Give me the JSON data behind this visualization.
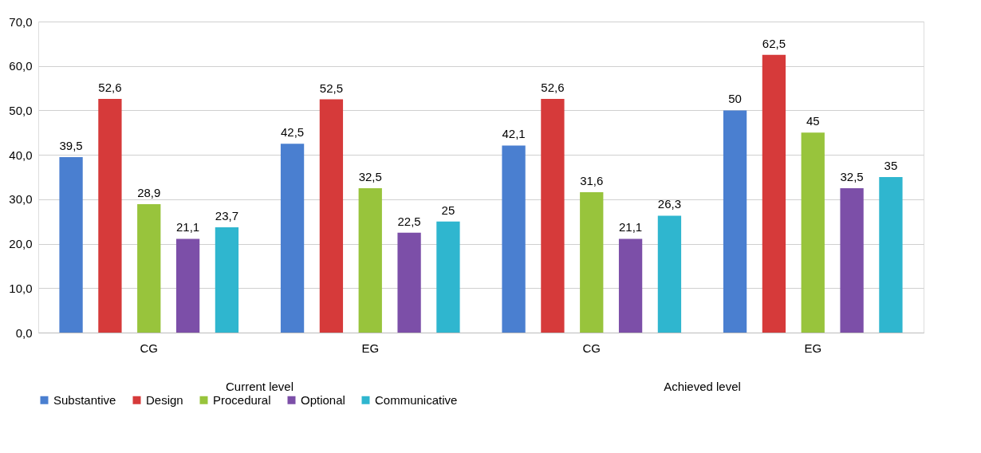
{
  "chart_data": {
    "type": "bar",
    "categories": [
      "CG",
      "EG",
      "CG",
      "EG"
    ],
    "series": [
      {
        "name": "Substantive",
        "color": "#4a7fd0",
        "values": [
          39.5,
          42.5,
          42.1,
          50
        ],
        "value_labels": [
          "39,5",
          "42,5",
          "42,1",
          "50"
        ]
      },
      {
        "name": "Design",
        "color": "#d63a3a",
        "values": [
          52.6,
          52.5,
          52.6,
          62.5
        ],
        "value_labels": [
          "52,6",
          "52,5",
          "52,6",
          "62,5"
        ]
      },
      {
        "name": "Procedural",
        "color": "#98c43c",
        "values": [
          28.9,
          32.5,
          31.6,
          45
        ],
        "value_labels": [
          "28,9",
          "32,5",
          "31,6",
          "45"
        ]
      },
      {
        "name": "Optional",
        "color": "#7c4fa8",
        "values": [
          21.1,
          22.5,
          21.1,
          32.5
        ],
        "value_labels": [
          "21,1",
          "22,5",
          "21,1",
          "32,5"
        ]
      },
      {
        "name": "Communicative",
        "color": "#2fb6cf",
        "values": [
          23.7,
          25,
          26.3,
          35
        ],
        "value_labels": [
          "23,7",
          "25",
          "26,3",
          "35"
        ]
      }
    ],
    "ylim": [
      0,
      70
    ],
    "yticks": [
      {
        "value": 0,
        "label": "0,0"
      },
      {
        "value": 10,
        "label": "10,0"
      },
      {
        "value": 20,
        "label": "20,0"
      },
      {
        "value": 30,
        "label": "30,0"
      },
      {
        "value": 40,
        "label": "40,0"
      },
      {
        "value": 50,
        "label": "50,0"
      },
      {
        "value": 60,
        "label": "60,0"
      },
      {
        "value": 70,
        "label": "70,0"
      }
    ],
    "grid": "y",
    "legend": "bottom",
    "annotations": [
      "Current level",
      "Achieved level"
    ]
  }
}
